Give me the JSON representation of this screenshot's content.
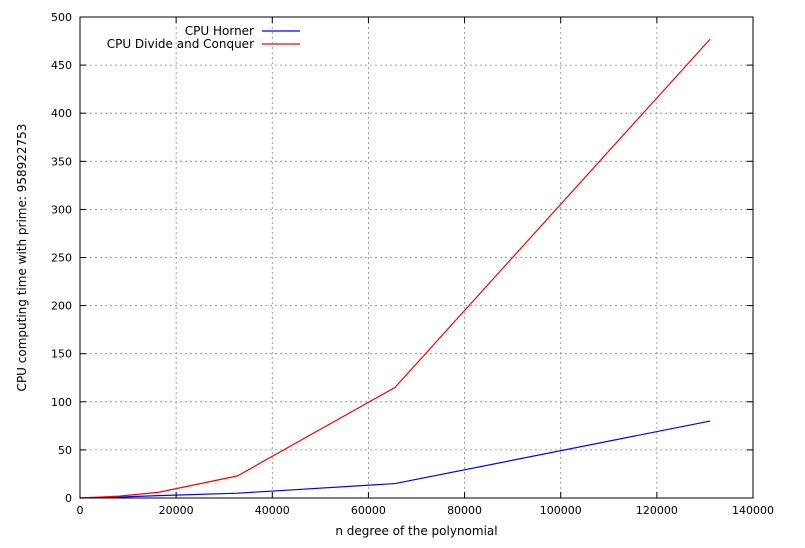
{
  "chart_data": {
    "type": "line",
    "title": "",
    "xlabel": "n degree of the polynomial",
    "ylabel": "CPU computing time with prime: 958922753",
    "xlim": [
      0,
      140000
    ],
    "ylim": [
      0,
      500
    ],
    "xticks": [
      0,
      20000,
      40000,
      60000,
      80000,
      100000,
      120000,
      140000
    ],
    "yticks": [
      0,
      50,
      100,
      150,
      200,
      250,
      300,
      350,
      400,
      450,
      500
    ],
    "grid": true,
    "legend_position": "top-left",
    "series": [
      {
        "name": "CPU Horner",
        "color": "#0000ff",
        "x": [
          0,
          1024,
          2048,
          4096,
          8192,
          16384,
          32768,
          65536,
          131072
        ],
        "y": [
          0,
          0.1,
          0.2,
          0.5,
          1,
          2.5,
          5,
          15,
          80
        ]
      },
      {
        "name": "CPU Divide and Conquer",
        "color": "#ff0000",
        "x": [
          0,
          1024,
          2048,
          4096,
          8192,
          16384,
          32768,
          65536,
          131072
        ],
        "y": [
          0,
          0.2,
          0.5,
          1,
          2,
          6,
          23,
          115,
          477
        ]
      }
    ]
  }
}
